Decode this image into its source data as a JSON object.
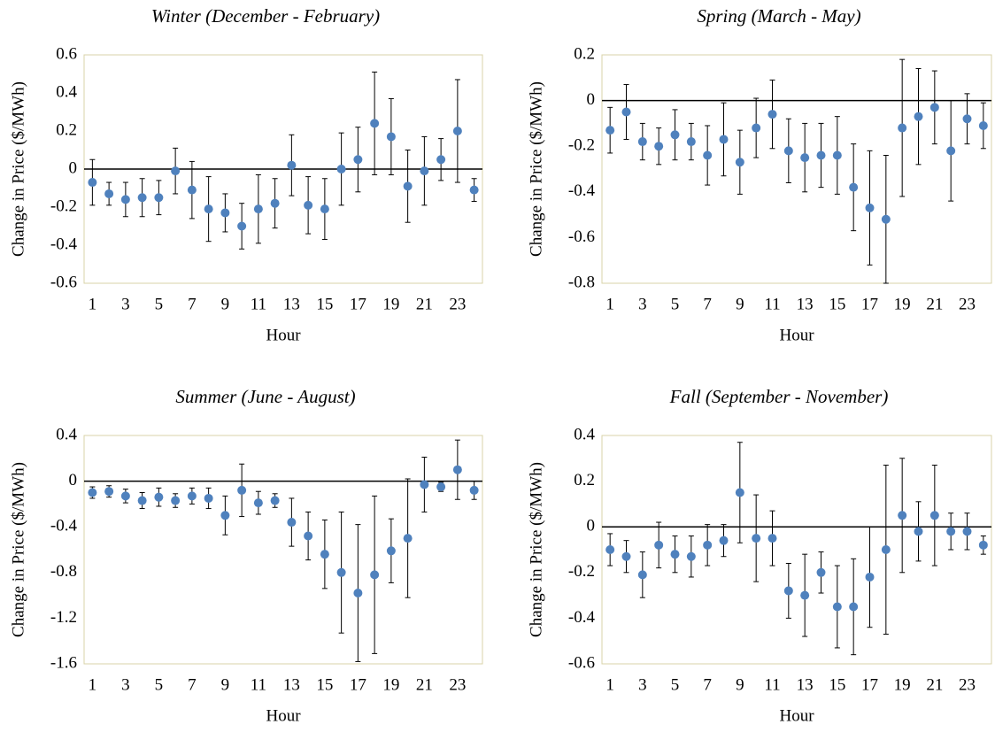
{
  "chart_data": [
    {
      "type": "scatter",
      "title": "Winter (December - February)",
      "x_label": "Hour",
      "y_label": "Change in Price ($/MWh)",
      "categories": [
        1,
        null,
        3,
        null,
        5,
        null,
        7,
        null,
        9,
        null,
        11,
        null,
        13,
        null,
        15,
        null,
        17,
        null,
        19,
        null,
        21,
        null,
        23,
        null
      ],
      "series": [
        {
          "color": "#4f81bd",
          "values": [
            -0.07,
            -0.13,
            -0.16,
            -0.15,
            -0.15,
            -0.01,
            -0.11,
            -0.21,
            -0.23,
            -0.3,
            -0.21,
            -0.18,
            0.02,
            -0.19,
            -0.21,
            0.0,
            0.05,
            0.24,
            0.17,
            -0.09,
            -0.01,
            0.05,
            0.2,
            -0.11
          ],
          "errors": [
            0.12,
            0.06,
            0.09,
            0.1,
            0.09,
            0.12,
            0.15,
            0.17,
            0.1,
            0.12,
            0.18,
            0.13,
            0.16,
            0.15,
            0.16,
            0.19,
            0.17,
            0.27,
            0.2,
            0.19,
            0.18,
            0.11,
            0.27,
            0.06
          ]
        }
      ],
      "ylim": [
        -0.6,
        0.6
      ],
      "yticks": [
        -0.6,
        -0.4,
        -0.2,
        0,
        0.2,
        0.4,
        0.6
      ]
    },
    {
      "type": "scatter",
      "title": "Spring (March - May)",
      "x_label": "Hour",
      "y_label": "Change in Price ($/MWh)",
      "categories": [
        1,
        null,
        3,
        null,
        5,
        null,
        7,
        null,
        9,
        null,
        11,
        null,
        13,
        null,
        15,
        null,
        17,
        null,
        19,
        null,
        21,
        null,
        23,
        null
      ],
      "series": [
        {
          "color": "#4f81bd",
          "values": [
            -0.13,
            -0.05,
            -0.18,
            -0.2,
            -0.15,
            -0.18,
            -0.24,
            -0.17,
            -0.27,
            -0.12,
            -0.06,
            -0.22,
            -0.25,
            -0.24,
            -0.24,
            -0.38,
            -0.47,
            -0.52,
            -0.12,
            -0.07,
            -0.03,
            -0.22,
            -0.08,
            -0.11
          ],
          "errors": [
            0.1,
            0.12,
            0.08,
            0.08,
            0.11,
            0.08,
            0.13,
            0.16,
            0.14,
            0.13,
            0.15,
            0.14,
            0.15,
            0.14,
            0.17,
            0.19,
            0.25,
            0.28,
            0.3,
            0.21,
            0.16,
            0.22,
            0.11,
            0.1
          ]
        }
      ],
      "ylim": [
        -0.8,
        0.2
      ],
      "yticks": [
        -0.8,
        -0.6,
        -0.4,
        -0.2,
        0,
        0.2
      ]
    },
    {
      "type": "scatter",
      "title": "Summer (June - August)",
      "x_label": "Hour",
      "y_label": "Change in Price ($/MWh)",
      "categories": [
        1,
        null,
        3,
        null,
        5,
        null,
        7,
        null,
        9,
        null,
        11,
        null,
        13,
        null,
        15,
        null,
        17,
        null,
        19,
        null,
        21,
        null,
        23,
        null
      ],
      "series": [
        {
          "color": "#4f81bd",
          "values": [
            -0.1,
            -0.09,
            -0.13,
            -0.17,
            -0.14,
            -0.17,
            -0.13,
            -0.15,
            -0.3,
            -0.08,
            -0.19,
            -0.17,
            -0.36,
            -0.48,
            -0.64,
            -0.8,
            -0.98,
            -0.82,
            -0.61,
            -0.5,
            -0.03,
            -0.05,
            0.1,
            -0.08
          ],
          "errors": [
            0.05,
            0.05,
            0.06,
            0.07,
            0.08,
            0.06,
            0.07,
            0.09,
            0.17,
            0.23,
            0.1,
            0.06,
            0.21,
            0.21,
            0.3,
            0.53,
            0.6,
            0.69,
            0.28,
            0.52,
            0.24,
            0.04,
            0.26,
            0.08
          ]
        }
      ],
      "ylim": [
        -1.6,
        0.4
      ],
      "yticks": [
        -1.6,
        -1.2,
        -0.8,
        -0.4,
        0,
        0.4
      ]
    },
    {
      "type": "scatter",
      "title": "Fall (September - November)",
      "x_label": "Hour",
      "y_label": "Change in Price ($/MWh)",
      "categories": [
        1,
        null,
        3,
        null,
        5,
        null,
        7,
        null,
        9,
        null,
        11,
        null,
        13,
        null,
        15,
        null,
        17,
        null,
        19,
        null,
        21,
        null,
        23,
        null
      ],
      "series": [
        {
          "color": "#4f81bd",
          "values": [
            -0.1,
            -0.13,
            -0.21,
            -0.08,
            -0.12,
            -0.13,
            -0.08,
            -0.06,
            0.15,
            -0.05,
            -0.05,
            -0.28,
            -0.3,
            -0.2,
            -0.35,
            -0.35,
            -0.22,
            -0.1,
            0.05,
            -0.02,
            0.05,
            -0.02,
            -0.02,
            -0.08
          ],
          "errors": [
            0.07,
            0.07,
            0.1,
            0.1,
            0.08,
            0.09,
            0.09,
            0.07,
            0.22,
            0.19,
            0.12,
            0.12,
            0.18,
            0.09,
            0.18,
            0.21,
            0.22,
            0.37,
            0.25,
            0.13,
            0.22,
            0.08,
            0.08,
            0.04
          ]
        }
      ],
      "ylim": [
        -0.6,
        0.4
      ],
      "yticks": [
        -0.6,
        -0.4,
        -0.2,
        0,
        0.2,
        0.4
      ]
    }
  ]
}
